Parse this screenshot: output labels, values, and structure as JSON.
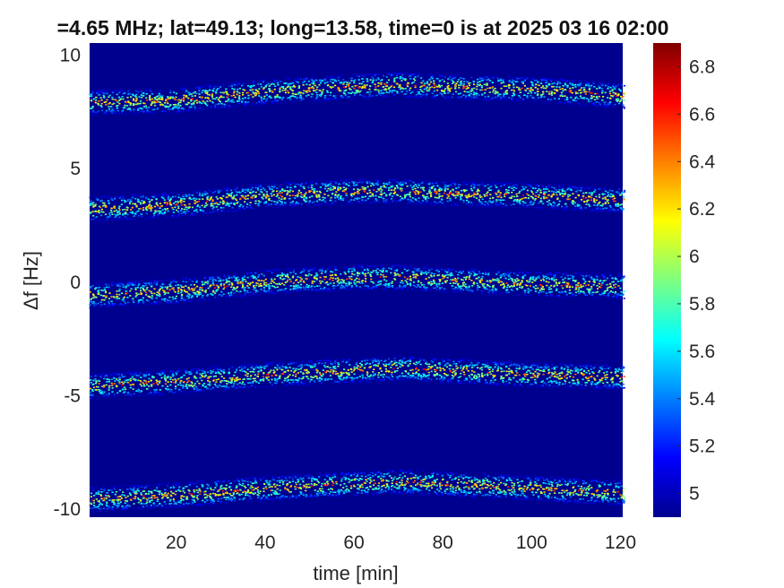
{
  "chart_data": {
    "type": "heatmap",
    "title": "=4.65 MHz;  lat=49.13; long=13.58, time=0 is at 2025 03 16 02:00",
    "xlabel": "time [min]",
    "ylabel": "Δf [Hz]",
    "xlim": [
      0.5,
      120.5
    ],
    "ylim": [
      -10.4,
      10.5
    ],
    "xticks": [
      20,
      40,
      60,
      80,
      100,
      120
    ],
    "xtick_labels": [
      "20",
      "40",
      "60",
      "80",
      "100",
      "120"
    ],
    "yticks": [
      10,
      5,
      0,
      -5,
      -10
    ],
    "ytick_labels": [
      "10",
      "5",
      "0",
      "-5",
      "-10"
    ],
    "colorbar": {
      "range": [
        4.9,
        6.9
      ],
      "ticks": [
        6.8,
        6.6,
        6.4,
        6.2,
        6,
        5.8,
        5.6,
        5.4,
        5.2,
        5
      ],
      "tick_labels": [
        "6.8",
        "6.6",
        "6.4",
        "6.2",
        "6",
        "5.8",
        "5.6",
        "5.4",
        "5.2",
        "5"
      ],
      "colormap": "jet"
    },
    "background_color": "#00008f",
    "bands": [
      {
        "name": "",
        "trace": [
          [
            0,
            7.9
          ],
          [
            20,
            8.0
          ],
          [
            40,
            8.4
          ],
          [
            60,
            8.6
          ],
          [
            70,
            8.7
          ],
          [
            80,
            8.6
          ],
          [
            100,
            8.5
          ],
          [
            120,
            8.2
          ]
        ]
      },
      {
        "name": "",
        "trace": [
          [
            0,
            3.2
          ],
          [
            20,
            3.4
          ],
          [
            40,
            3.8
          ],
          [
            60,
            4.0
          ],
          [
            70,
            4.0
          ],
          [
            80,
            3.9
          ],
          [
            100,
            3.8
          ],
          [
            120,
            3.6
          ]
        ]
      },
      {
        "name": "",
        "trace": [
          [
            0,
            -0.6
          ],
          [
            20,
            -0.4
          ],
          [
            40,
            0.0
          ],
          [
            60,
            0.2
          ],
          [
            70,
            0.2
          ],
          [
            80,
            0.1
          ],
          [
            100,
            -0.1
          ],
          [
            120,
            -0.2
          ]
        ]
      },
      {
        "name": "",
        "trace": [
          [
            0,
            -4.6
          ],
          [
            20,
            -4.4
          ],
          [
            40,
            -4.1
          ],
          [
            60,
            -3.9
          ],
          [
            70,
            -3.8
          ],
          [
            80,
            -3.9
          ],
          [
            100,
            -4.1
          ],
          [
            120,
            -4.2
          ]
        ]
      },
      {
        "name": "",
        "trace": [
          [
            0,
            -9.6
          ],
          [
            20,
            -9.4
          ],
          [
            40,
            -9.1
          ],
          [
            60,
            -8.9
          ],
          [
            70,
            -8.8
          ],
          [
            80,
            -8.9
          ],
          [
            100,
            -9.1
          ],
          [
            120,
            -9.3
          ]
        ]
      }
    ]
  }
}
